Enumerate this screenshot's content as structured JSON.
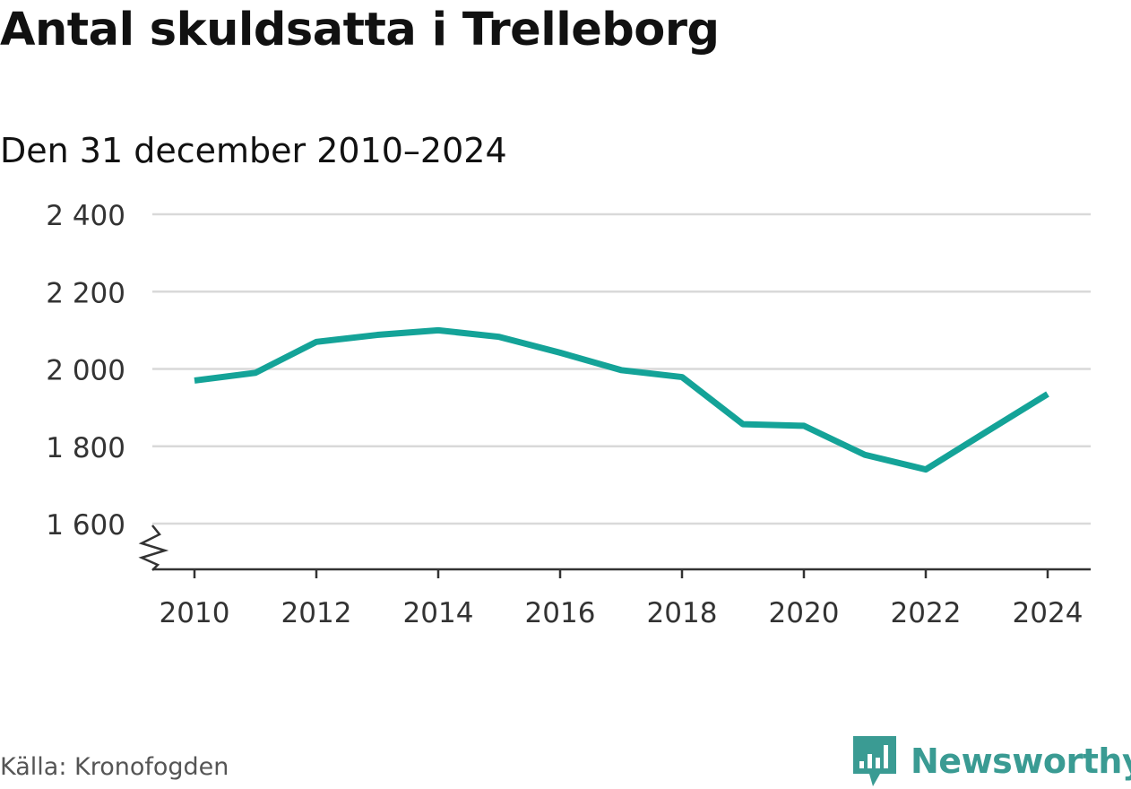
{
  "header": {
    "title": "Antal skuldsatta i Trelleborg",
    "subtitle": "Den 31 december 2010–2024"
  },
  "footer": {
    "source": "Källa: Kronofogden",
    "brand": "Newsworthy"
  },
  "colors": {
    "line": "#14a398",
    "grid": "#d9d9d9",
    "axis": "#333333",
    "brand": "#3a9b93"
  },
  "chart_data": {
    "type": "line",
    "title": "Antal skuldsatta i Trelleborg",
    "subtitle": "Den 31 december 2010–2024",
    "xlabel": "",
    "ylabel": "",
    "x": [
      2010,
      2011,
      2012,
      2013,
      2014,
      2015,
      2016,
      2017,
      2018,
      2019,
      2020,
      2021,
      2022,
      2023,
      2024
    ],
    "series": [
      {
        "values": [
          1970,
          1990,
          2070,
          2088,
          2100,
          2083,
          2042,
          1997,
          1979,
          1857,
          1853,
          1778,
          1740,
          1838,
          1935
        ]
      }
    ],
    "x_ticks": [
      2010,
      2012,
      2014,
      2016,
      2018,
      2020,
      2022,
      2024
    ],
    "x_tick_labels": [
      "2010",
      "2012",
      "2014",
      "2016",
      "2018",
      "2020",
      "2022",
      "2024"
    ],
    "y_ticks": [
      1600,
      1800,
      2000,
      2200,
      2400
    ],
    "y_tick_labels": [
      "1 600",
      "1 800",
      "2 000",
      "2 200",
      "2 400"
    ],
    "xlim": [
      2010,
      2024
    ],
    "ylim": [
      1600,
      2400
    ],
    "y_axis_break": true,
    "grid": true,
    "legend": "none"
  }
}
